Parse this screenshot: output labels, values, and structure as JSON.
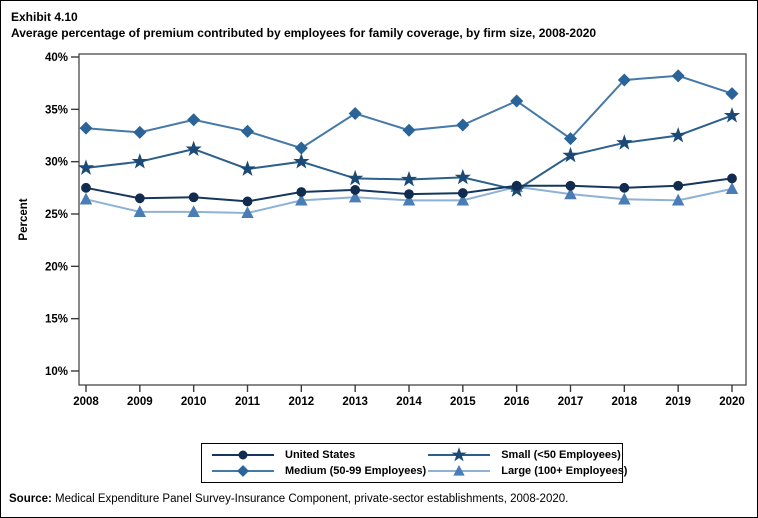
{
  "title": {
    "exhibit": "Exhibit 4.10",
    "text": "Average percentage of premium contributed by employees for family coverage, by firm size, 2008-2020"
  },
  "chart_data": {
    "type": "line",
    "x": [
      2008,
      2009,
      2010,
      2011,
      2012,
      2013,
      2014,
      2015,
      2016,
      2017,
      2018,
      2019,
      2020
    ],
    "series": [
      {
        "name": "United States",
        "marker": "circle",
        "line_color": "#17365d",
        "marker_color": "#112c4e",
        "values": [
          27.5,
          26.5,
          26.6,
          26.2,
          27.1,
          27.3,
          26.9,
          27.0,
          27.7,
          27.7,
          27.5,
          27.7,
          28.4
        ]
      },
      {
        "name": "Medium (50-99 Employees)",
        "marker": "diamond",
        "line_color": "#4579a8",
        "marker_color": "#2b6498",
        "values": [
          33.2,
          32.8,
          34.0,
          32.9,
          31.3,
          34.6,
          33.0,
          33.5,
          35.8,
          32.2,
          37.8,
          38.2,
          36.5
        ]
      },
      {
        "name": "Small (<50 Employees)",
        "marker": "star",
        "line_color": "#2c5f8c",
        "marker_color": "#1c4a76",
        "values": [
          29.4,
          30.0,
          31.2,
          29.3,
          30.0,
          28.4,
          28.3,
          28.5,
          27.3,
          30.6,
          31.8,
          32.5,
          34.4
        ]
      },
      {
        "name": "Large (100+ Employees)",
        "marker": "triangle",
        "line_color": "#8fb1d4",
        "marker_color": "#4a7db6",
        "values": [
          26.4,
          25.2,
          25.2,
          25.1,
          26.3,
          26.6,
          26.3,
          26.3,
          27.6,
          26.9,
          26.4,
          26.3,
          27.4
        ]
      }
    ],
    "draw_order": [
      3,
      1,
      2,
      0
    ],
    "legend_order": [
      0,
      2,
      1,
      3
    ],
    "ylabel": "Percent",
    "ylim": [
      10,
      40
    ],
    "ytick_step": 5,
    "yticks": [
      "10%",
      "15%",
      "20%",
      "25%",
      "30%",
      "35%",
      "40%"
    ],
    "grid": false,
    "legend_position": "bottom"
  },
  "source": {
    "label": "Source:",
    "text": " Medical Expenditure Panel Survey-Insurance Component, private-sector establishments, 2008-2020."
  }
}
